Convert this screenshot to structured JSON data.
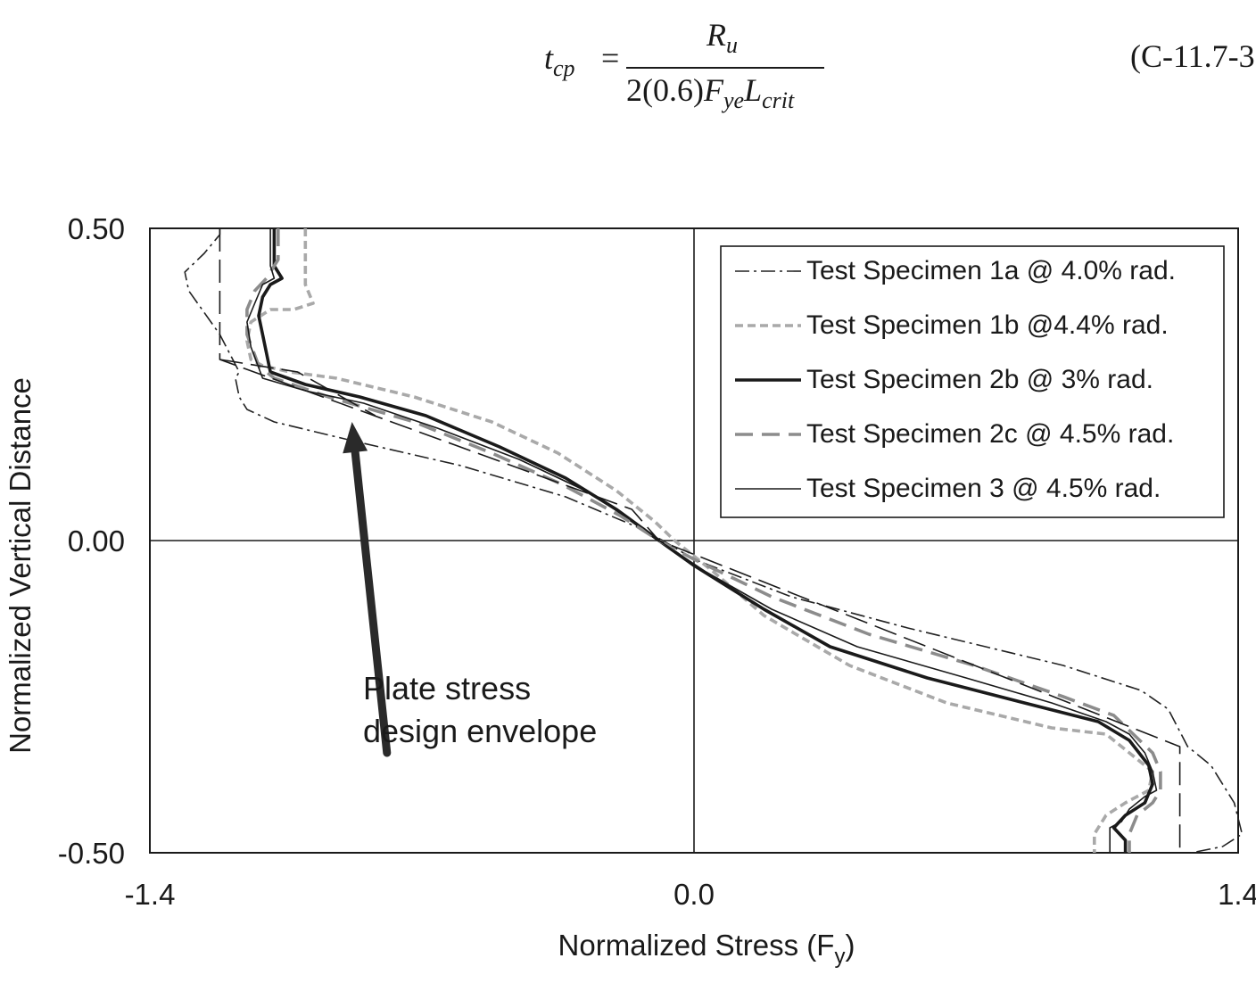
{
  "equation": {
    "lhs": "t",
    "lhs_sub": "cp",
    "equals": "=",
    "numerator": "R",
    "numerator_sub": "u",
    "denominator_prefix": "2(0.6)",
    "denominator_f": "F",
    "denominator_f_sub": "ye",
    "denominator_l": "L",
    "denominator_l_sub": "crit",
    "number": "(C-11.7-3"
  },
  "chart_data": {
    "type": "line",
    "xlabel": "Normalized Stress (F",
    "xlabel_sub": "y",
    "xlabel_close": ")",
    "ylabel": "Normalized Vertical Distance",
    "xlim": [
      -1.4,
      1.4
    ],
    "ylim": [
      -0.5,
      0.5
    ],
    "x_ticks": [
      "-1.4",
      "0.0",
      "1.4"
    ],
    "y_ticks": [
      "0.50",
      "0.00",
      "-0.50"
    ],
    "legend_position": "top-right",
    "annotation": {
      "line1": "Plate stress",
      "line2": "design envelope"
    },
    "series": [
      {
        "name": "Test Specimen 1a @ 4.0% rad.",
        "style": "dashdot-thin",
        "color": "#222222",
        "points": [
          [
            -1.22,
            0.5
          ],
          [
            -1.22,
            0.49
          ],
          [
            -1.26,
            0.46
          ],
          [
            -1.31,
            0.43
          ],
          [
            -1.3,
            0.4
          ],
          [
            -1.22,
            0.33
          ],
          [
            -1.17,
            0.27
          ],
          [
            -1.18,
            0.26
          ],
          [
            -1.17,
            0.23
          ],
          [
            -1.15,
            0.21
          ],
          [
            -1.08,
            0.19
          ],
          [
            -0.88,
            0.16
          ],
          [
            -0.6,
            0.12
          ],
          [
            -0.33,
            0.07
          ],
          [
            -0.14,
            0.02
          ],
          [
            -0.08,
            0.0
          ],
          [
            0.0,
            -0.03
          ],
          [
            0.25,
            -0.09
          ],
          [
            0.55,
            -0.14
          ],
          [
            0.95,
            -0.2
          ],
          [
            1.15,
            -0.24
          ],
          [
            1.22,
            -0.27
          ],
          [
            1.27,
            -0.33
          ],
          [
            1.33,
            -0.36
          ],
          [
            1.39,
            -0.42
          ],
          [
            1.41,
            -0.47
          ],
          [
            1.36,
            -0.49
          ],
          [
            1.28,
            -0.5
          ]
        ]
      },
      {
        "name": "Test Specimen 1b @4.4% rad.",
        "style": "dash-short-gray",
        "color": "#a9a9a9",
        "points": [
          [
            -1.0,
            0.5
          ],
          [
            -1.0,
            0.41
          ],
          [
            -0.98,
            0.38
          ],
          [
            -1.03,
            0.37
          ],
          [
            -1.09,
            0.37
          ],
          [
            -1.14,
            0.35
          ],
          [
            -1.15,
            0.32
          ],
          [
            -1.14,
            0.29
          ],
          [
            -1.11,
            0.28
          ],
          [
            -1.04,
            0.27
          ],
          [
            -0.92,
            0.26
          ],
          [
            -0.72,
            0.23
          ],
          [
            -0.52,
            0.19
          ],
          [
            -0.35,
            0.14
          ],
          [
            -0.2,
            0.08
          ],
          [
            -0.1,
            0.03
          ],
          [
            -0.05,
            0.0
          ],
          [
            0.05,
            -0.05
          ],
          [
            0.18,
            -0.12
          ],
          [
            0.4,
            -0.2
          ],
          [
            0.65,
            -0.26
          ],
          [
            0.92,
            -0.3
          ],
          [
            1.06,
            -0.31
          ],
          [
            1.12,
            -0.34
          ],
          [
            1.18,
            -0.37
          ],
          [
            1.17,
            -0.4
          ],
          [
            1.11,
            -0.42
          ],
          [
            1.06,
            -0.44
          ],
          [
            1.03,
            -0.47
          ],
          [
            1.03,
            -0.5
          ]
        ]
      },
      {
        "name": "Test Specimen 2b @ 3% rad.",
        "style": "solid-thick",
        "color": "#1a1a1a",
        "points": [
          [
            -1.08,
            0.5
          ],
          [
            -1.08,
            0.44
          ],
          [
            -1.06,
            0.42
          ],
          [
            -1.09,
            0.41
          ],
          [
            -1.11,
            0.39
          ],
          [
            -1.12,
            0.36
          ],
          [
            -1.11,
            0.33
          ],
          [
            -1.09,
            0.27
          ],
          [
            -1.0,
            0.25
          ],
          [
            -0.86,
            0.23
          ],
          [
            -0.69,
            0.2
          ],
          [
            -0.5,
            0.15
          ],
          [
            -0.33,
            0.1
          ],
          [
            -0.2,
            0.05
          ],
          [
            -0.09,
            0.0
          ],
          [
            0.0,
            -0.04
          ],
          [
            0.18,
            -0.11
          ],
          [
            0.35,
            -0.17
          ],
          [
            0.6,
            -0.22
          ],
          [
            0.85,
            -0.26
          ],
          [
            1.04,
            -0.29
          ],
          [
            1.12,
            -0.32
          ],
          [
            1.17,
            -0.36
          ],
          [
            1.18,
            -0.39
          ],
          [
            1.16,
            -0.42
          ],
          [
            1.11,
            -0.44
          ],
          [
            1.08,
            -0.46
          ],
          [
            1.11,
            -0.48
          ],
          [
            1.11,
            -0.5
          ]
        ]
      },
      {
        "name": "Test Specimen 2c @ 4.5% rad.",
        "style": "dash-long-gray",
        "color": "#8c8c8c",
        "points": [
          [
            -1.07,
            0.5
          ],
          [
            -1.07,
            0.45
          ],
          [
            -1.1,
            0.42
          ],
          [
            -1.13,
            0.4
          ],
          [
            -1.15,
            0.37
          ],
          [
            -1.15,
            0.33
          ],
          [
            -1.12,
            0.28
          ],
          [
            -1.08,
            0.26
          ],
          [
            -0.94,
            0.23
          ],
          [
            -0.72,
            0.19
          ],
          [
            -0.52,
            0.14
          ],
          [
            -0.34,
            0.09
          ],
          [
            -0.19,
            0.04
          ],
          [
            -0.09,
            0.0
          ],
          [
            0.0,
            -0.03
          ],
          [
            0.2,
            -0.09
          ],
          [
            0.45,
            -0.15
          ],
          [
            0.72,
            -0.2
          ],
          [
            0.95,
            -0.25
          ],
          [
            1.08,
            -0.28
          ],
          [
            1.13,
            -0.31
          ],
          [
            1.18,
            -0.34
          ],
          [
            1.2,
            -0.37
          ],
          [
            1.2,
            -0.4
          ],
          [
            1.18,
            -0.42
          ],
          [
            1.14,
            -0.44
          ],
          [
            1.12,
            -0.47
          ],
          [
            1.12,
            -0.5
          ]
        ]
      },
      {
        "name": "Test Specimen 3 @ 4.5% rad.",
        "style": "solid-thin",
        "color": "#1a1a1a",
        "points": [
          [
            -1.09,
            0.5
          ],
          [
            -1.09,
            0.44
          ],
          [
            -1.08,
            0.42
          ],
          [
            -1.11,
            0.41
          ],
          [
            -1.13,
            0.38
          ],
          [
            -1.15,
            0.35
          ],
          [
            -1.14,
            0.31
          ],
          [
            -1.11,
            0.26
          ],
          [
            -1.0,
            0.24
          ],
          [
            -0.85,
            0.22
          ],
          [
            -0.66,
            0.18
          ],
          [
            -0.45,
            0.13
          ],
          [
            -0.28,
            0.08
          ],
          [
            -0.13,
            0.02
          ],
          [
            -0.09,
            0.0
          ],
          [
            0.03,
            -0.05
          ],
          [
            0.2,
            -0.11
          ],
          [
            0.42,
            -0.17
          ],
          [
            0.7,
            -0.22
          ],
          [
            0.92,
            -0.26
          ],
          [
            1.06,
            -0.29
          ],
          [
            1.12,
            -0.31
          ],
          [
            1.16,
            -0.34
          ],
          [
            1.18,
            -0.37
          ],
          [
            1.19,
            -0.4
          ],
          [
            1.16,
            -0.41
          ],
          [
            1.12,
            -0.43
          ],
          [
            1.1,
            -0.45
          ],
          [
            1.07,
            -0.46
          ],
          [
            1.07,
            -0.5
          ]
        ]
      },
      {
        "name": "",
        "style": "envelope-dash",
        "color": "#1a1a1a",
        "points": [
          [
            -1.22,
            0.5
          ],
          [
            -1.22,
            0.29
          ],
          [
            -0.16,
            0.05
          ],
          [
            -0.09,
            0.0
          ],
          [
            1.25,
            -0.33
          ],
          [
            1.25,
            -0.5
          ]
        ]
      }
    ],
    "envelope_extra": [
      [
        -1.22,
        0.29
      ],
      [
        -1.02,
        0.27
      ],
      [
        -0.82,
        0.2
      ]
    ],
    "arrow": {
      "from": [
        -0.79,
        -0.34
      ],
      "to": [
        -0.88,
        0.19
      ]
    }
  }
}
